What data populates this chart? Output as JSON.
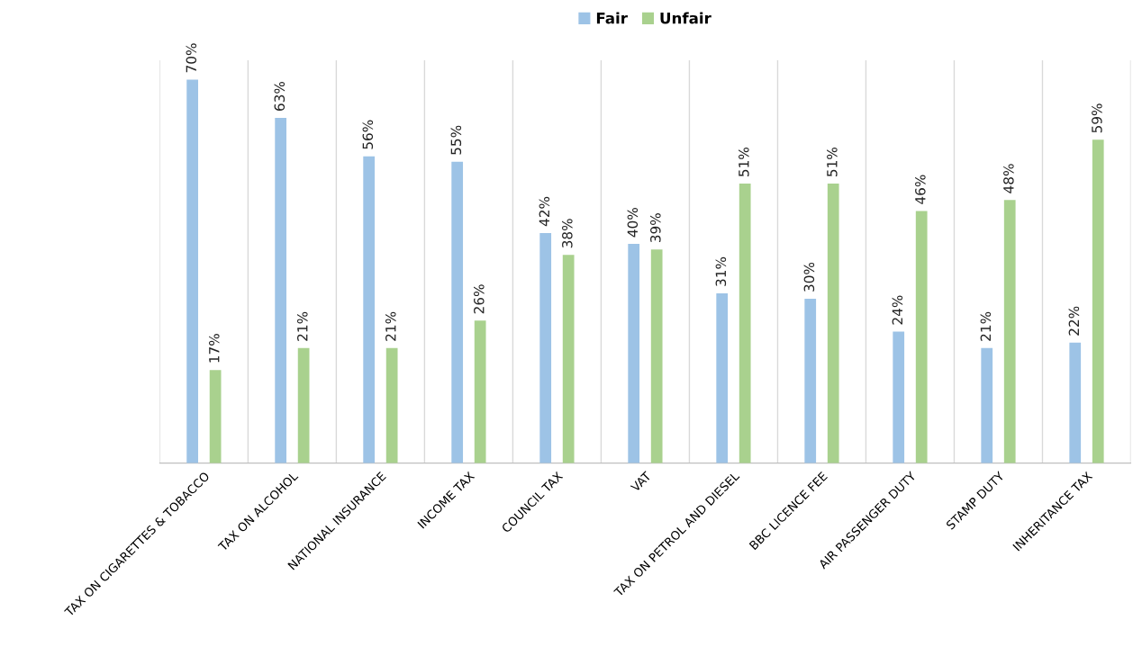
{
  "chart_data": {
    "type": "bar",
    "categories": [
      "TAX ON CIGARETTES & TOBACCO",
      "TAX ON ALCOHOL",
      "NATIONAL INSURANCE",
      "INCOME TAX",
      "COUNCIL TAX",
      "VAT",
      "TAX ON PETROL AND DIESEL",
      "BBC LICENCE FEE",
      "AIR PASSENGER DUTY",
      "STAMP DUTY",
      "INHERITANCE TAX"
    ],
    "series": [
      {
        "name": "Fair",
        "color": "#9dc3e6",
        "values": [
          70,
          63,
          56,
          55,
          42,
          40,
          31,
          30,
          24,
          21,
          22
        ],
        "value_labels": [
          "70%",
          "63%",
          "56%",
          "55%",
          "42%",
          "40%",
          "31%",
          "30%",
          "24%",
          "21%",
          "22%"
        ]
      },
      {
        "name": "Unfair",
        "color": "#a9d18e",
        "values": [
          17,
          21,
          21,
          26,
          38,
          39,
          51,
          51,
          46,
          48,
          59
        ],
        "value_labels": [
          "17%",
          "21%",
          "21%",
          "26%",
          "38%",
          "39%",
          "51%",
          "51%",
          "46%",
          "48%",
          "59%"
        ]
      }
    ],
    "tick_labels": "x",
    "grid": "x",
    "legend": "top"
  }
}
